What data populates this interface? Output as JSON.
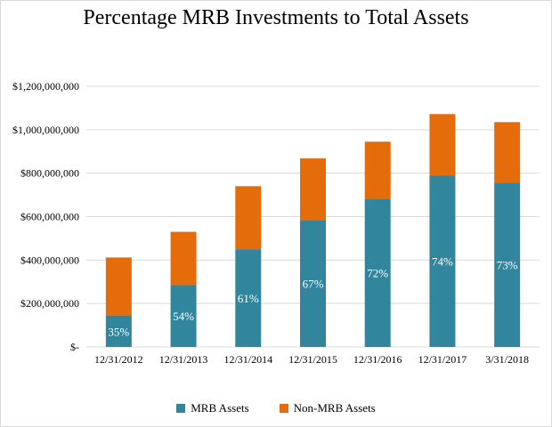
{
  "chart_data": {
    "type": "bar",
    "stacked": true,
    "title": "Percentage MRB Investments to Total Assets",
    "xlabel": "",
    "ylabel": "",
    "ylim": [
      0,
      1200000000
    ],
    "yticks": [
      0,
      200000000,
      400000000,
      600000000,
      800000000,
      1000000000,
      1200000000
    ],
    "ytick_labels": [
      "$-",
      "$200,000,000",
      "$400,000,000",
      "$600,000,000",
      "$800,000,000",
      "$1,000,000,000",
      "$1,200,000,000"
    ],
    "grid": true,
    "legend_position": "bottom",
    "categories": [
      "12/31/2012",
      "12/31/2013",
      "12/31/2014",
      "12/31/2015",
      "12/31/2016",
      "12/31/2017",
      "3/31/2018"
    ],
    "series": [
      {
        "name": "MRB Assets",
        "color": "#31859c",
        "values": [
          145000000,
          285000000,
          450000000,
          585000000,
          683000000,
          790000000,
          757000000
        ],
        "data_labels": [
          "35%",
          "54%",
          "61%",
          "67%",
          "72%",
          "74%",
          "73%"
        ]
      },
      {
        "name": "Non-MRB Assets",
        "color": "#e46c0a",
        "values": [
          267000000,
          245000000,
          290000000,
          283000000,
          262000000,
          282000000,
          278000000
        ]
      }
    ]
  }
}
